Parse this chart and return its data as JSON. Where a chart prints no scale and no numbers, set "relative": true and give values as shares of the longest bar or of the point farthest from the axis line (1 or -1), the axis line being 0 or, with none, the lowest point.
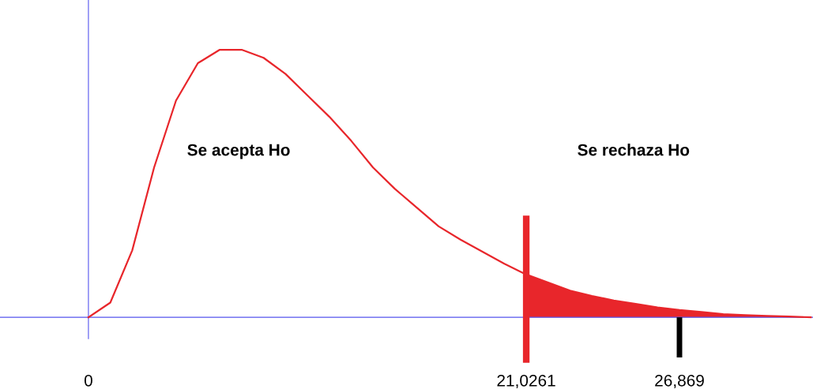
{
  "chart_data": {
    "type": "line",
    "relative": true,
    "annotations": [
      "Se acepta Ho",
      "Se rechaza Ho"
    ],
    "categories": [
      "0",
      null,
      null,
      null,
      null,
      null,
      null,
      null,
      null,
      null,
      null,
      null,
      null,
      null,
      null,
      null,
      null,
      null,
      null,
      null,
      "21,0261",
      null,
      null,
      null,
      null,
      null,
      null,
      "26,869",
      null,
      null,
      null,
      null,
      null,
      null
    ],
    "series": [
      {
        "color": "#e8262b",
        "values": [
          0,
          0.055,
          0.25,
          0.56,
          0.81,
          0.95,
          1.0,
          1.0,
          0.97,
          0.91,
          0.83,
          0.75,
          0.66,
          0.56,
          0.48,
          0.41,
          0.34,
          0.29,
          0.245,
          0.2,
          0.16,
          0.13,
          0.1,
          0.08,
          0.063,
          0.05,
          0.037,
          0.027,
          0.02,
          0.012,
          0.008,
          0.005,
          0.003,
          0
        ]
      },
      {
        "type": "area",
        "color": "#e8262b",
        "values": [
          null,
          null,
          null,
          null,
          null,
          null,
          null,
          null,
          null,
          null,
          null,
          null,
          null,
          null,
          null,
          null,
          null,
          null,
          null,
          null,
          0.16,
          0.13,
          0.1,
          0.08,
          0.063,
          0.05,
          0.037,
          0.027,
          0.02,
          0.012,
          0.008,
          0.005,
          0.003,
          0
        ]
      }
    ],
    "ref_lines": [
      {
        "axis": "x",
        "value": "21,0261",
        "color": "#e8262b"
      }
    ],
    "grid": false,
    "legend": false,
    "marker": "none",
    "line_style": "solid"
  }
}
